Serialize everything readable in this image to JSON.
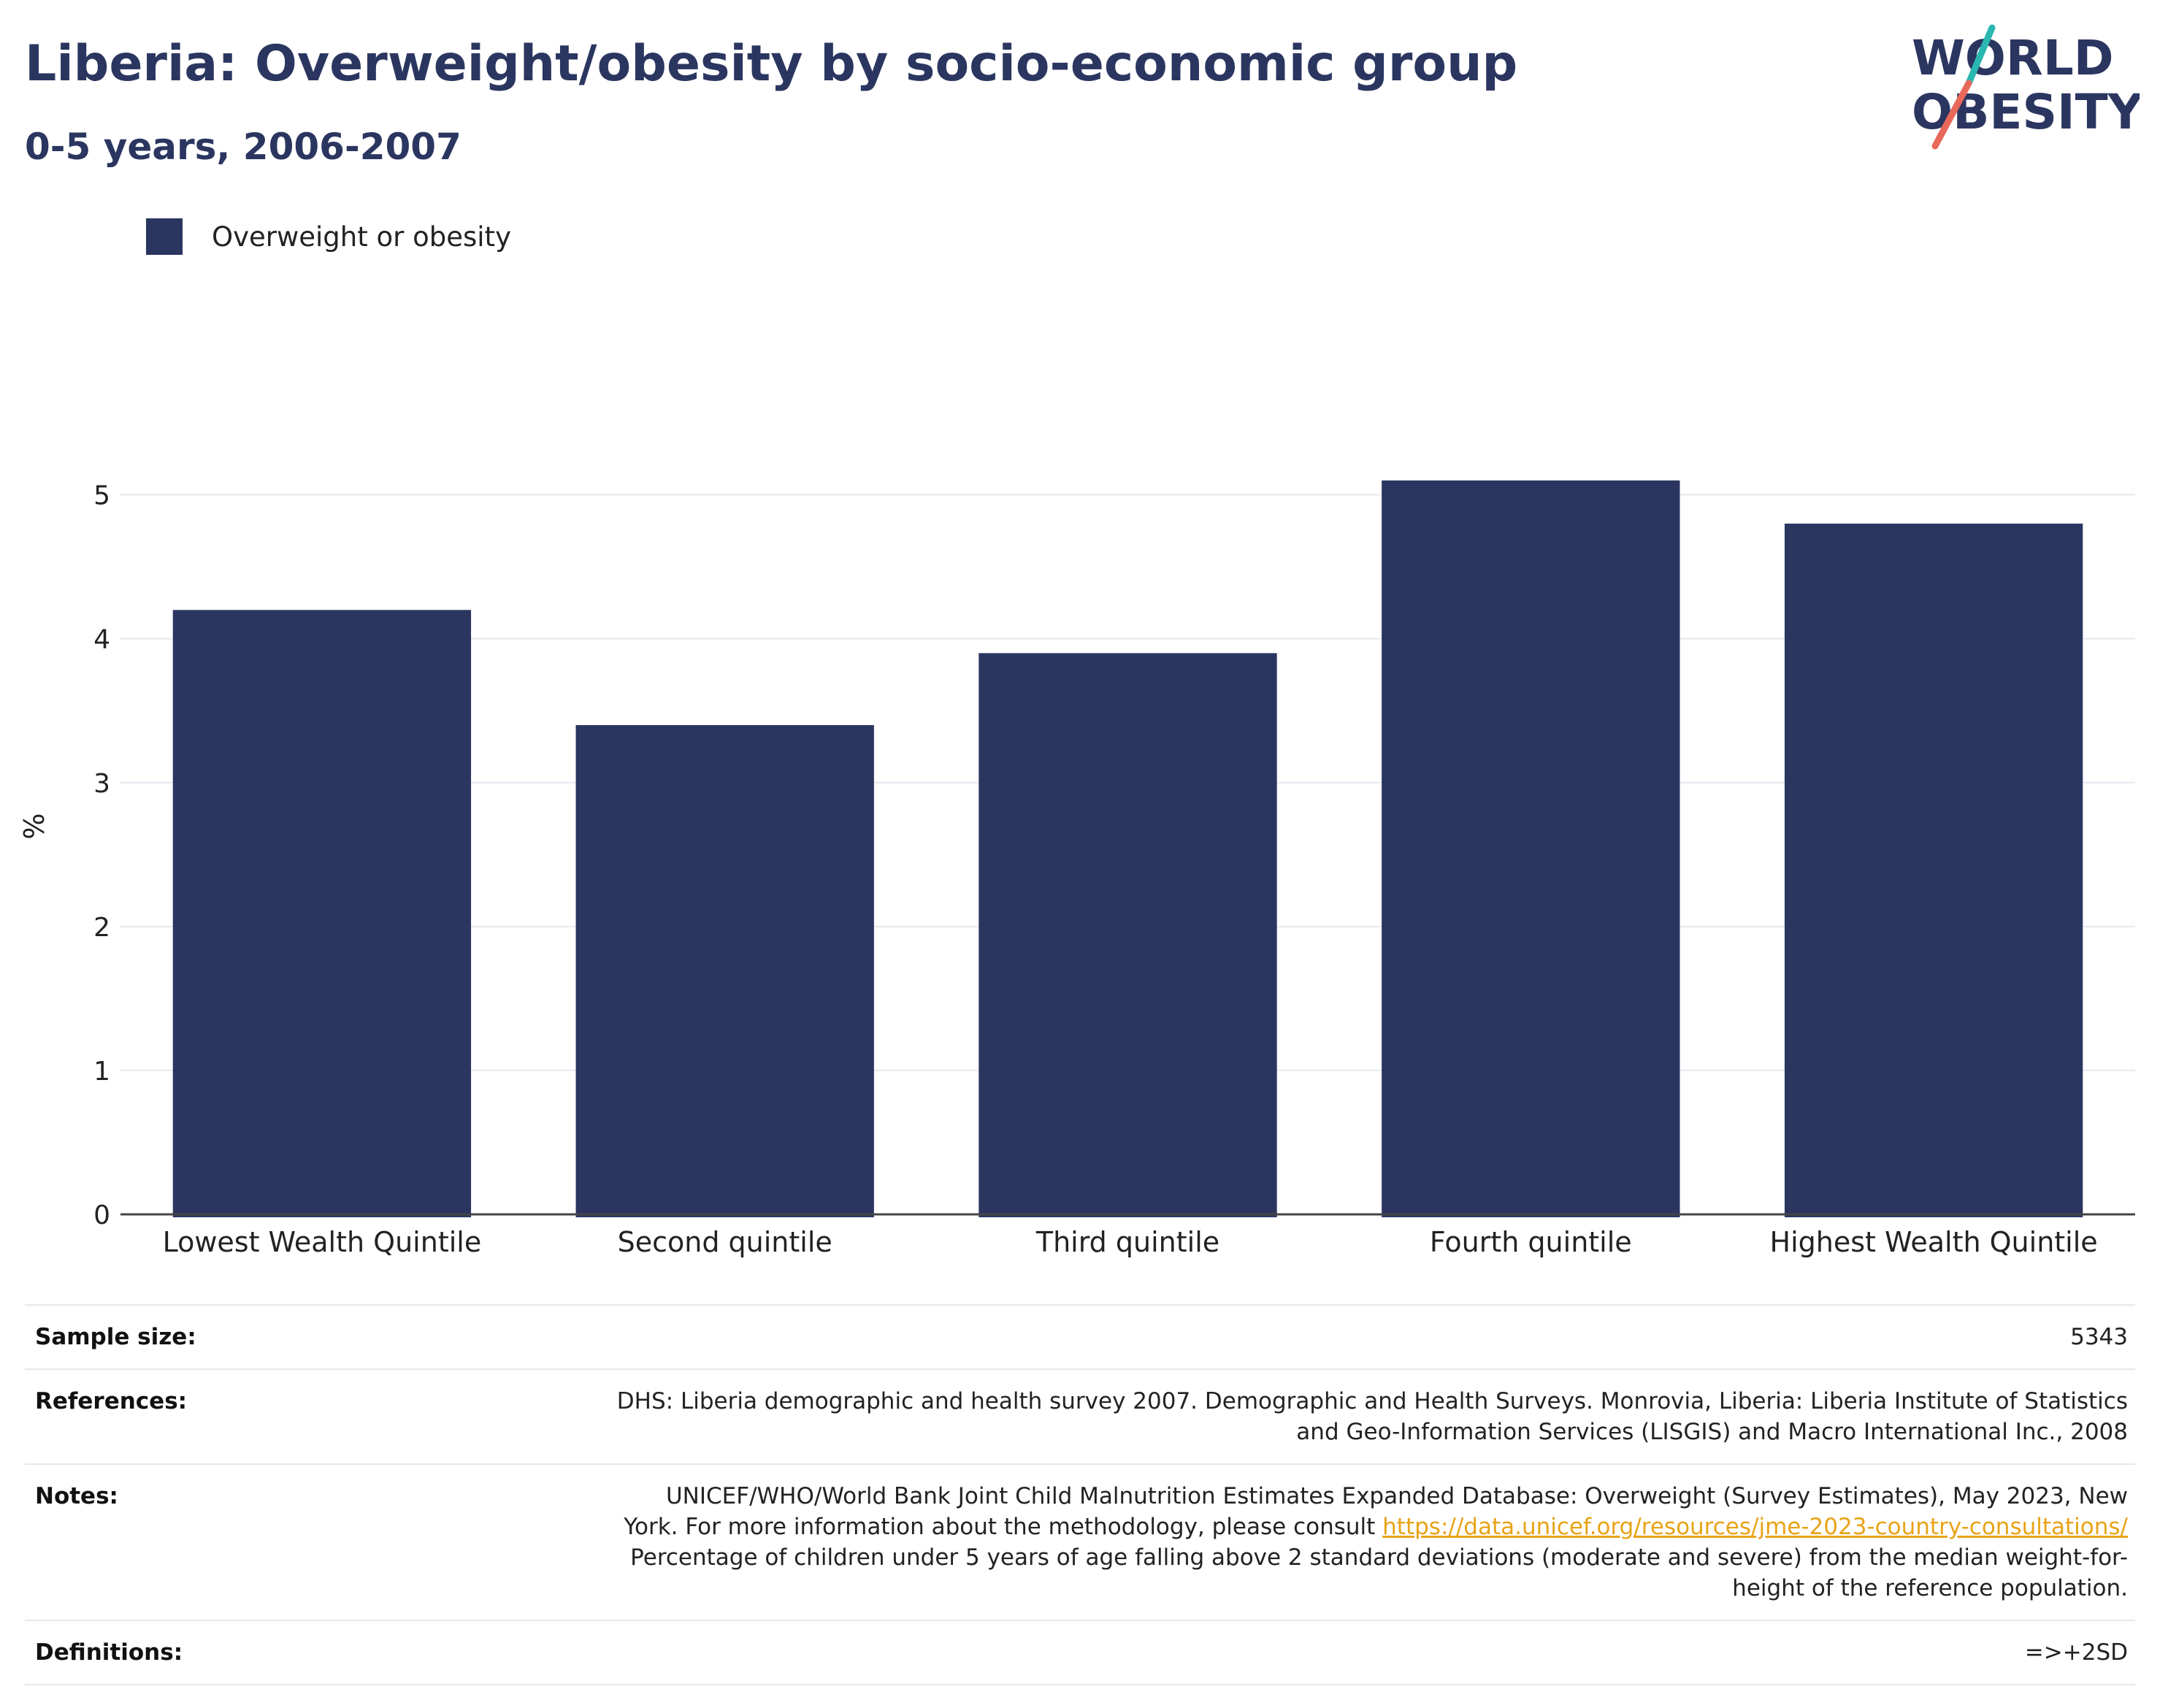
{
  "header": {
    "title": "Liberia: Overweight/obesity by socio-economic group",
    "subtitle": "0-5 years, 2006-2007"
  },
  "logo": {
    "line1": "WORLD",
    "line2": "OBESITY",
    "colors": {
      "text": "#2b3660",
      "slash_top": "#2ab7b0",
      "slash_bottom": "#e8685a"
    }
  },
  "legend": {
    "items": [
      {
        "label": "Overweight or obesity",
        "color": "#2b3660"
      }
    ],
    "placement": "top-left"
  },
  "chart_data": {
    "type": "bar",
    "title": "Liberia: Overweight/obesity by socio-economic group",
    "subtitle": "0-5 years, 2006-2007",
    "categories": [
      "Lowest Wealth Quintile",
      "Second quintile",
      "Third quintile",
      "Fourth quintile",
      "Highest Wealth Quintile"
    ],
    "series": [
      {
        "name": "Overweight or obesity",
        "values": [
          4.2,
          3.4,
          3.9,
          5.1,
          4.8
        ],
        "color": "#2b3660"
      }
    ],
    "xlabel": "",
    "ylabel": "%",
    "ylim": [
      0,
      5.8
    ],
    "yticks": [
      0,
      1,
      2,
      3,
      4,
      5
    ],
    "grid": true,
    "legend_placement": "top-left"
  },
  "info": {
    "sample_size_label": "Sample size:",
    "sample_size_value": "5343",
    "references_label": "References:",
    "references_line1": "DHS: Liberia demographic and health survey 2007. Demographic and Health Surveys. Monrovia, Liberia: Liberia Institute of Statistics",
    "references_line2": "and Geo-Information Services (LISGIS) and Macro International Inc., 2008",
    "notes_label": "Notes:",
    "notes_line1": "UNICEF/WHO/World Bank Joint Child Malnutrition Estimates Expanded Database: Overweight (Survey Estimates), May 2023, New",
    "notes_line2_prefix": "York. For more information about the methodology, please consult ",
    "notes_link": "https://data.unicef.org/resources/jme-2023-country-consultations/",
    "notes_line3": "Percentage of children under 5 years of age falling above 2 standard deviations (moderate and severe) from the median weight-for-",
    "notes_line4": "height of the reference population.",
    "definitions_label": "Definitions:",
    "definitions_value": "=>+2SD",
    "link_color": "#e8a317"
  }
}
